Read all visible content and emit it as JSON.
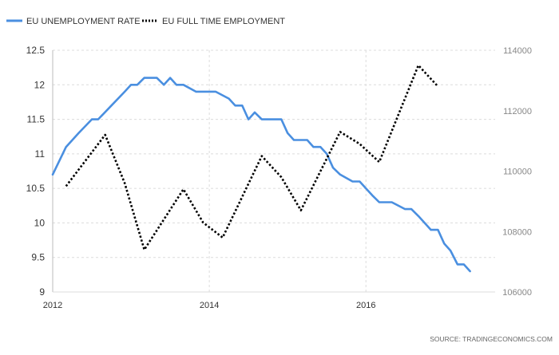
{
  "chart_data": {
    "type": "line",
    "legend_position": "top-left",
    "grid": true,
    "source": "SOURCE: TRADINGECONOMICS.COM",
    "x_ticks": [
      "2012",
      "2014",
      "2016"
    ],
    "xlim": [
      2012,
      2017.65
    ],
    "y_left": {
      "ylim": [
        9,
        12.5
      ],
      "ticks": [
        "12.5",
        "12",
        "11.5",
        "11",
        "10.5",
        "10",
        "9.5",
        "9"
      ],
      "tick_values": [
        12.5,
        12,
        11.5,
        11,
        10.5,
        10,
        9.5,
        9
      ]
    },
    "y_right": {
      "ylim": [
        106000,
        114000
      ],
      "ticks": [
        "114000",
        "112000",
        "110000",
        "108000",
        "106000"
      ],
      "tick_values": [
        114000,
        112000,
        110000,
        108000,
        106000
      ]
    },
    "series": [
      {
        "name": "EU UNEMPLOYMENT RATE",
        "axis": "left",
        "color": "#4a8fe0",
        "style": "solid",
        "x": [
          2012.0,
          2012.17,
          2012.33,
          2012.5,
          2012.58,
          2012.75,
          2012.92,
          2013.0,
          2013.08,
          2013.17,
          2013.33,
          2013.42,
          2013.5,
          2013.58,
          2013.67,
          2013.83,
          2014.0,
          2014.08,
          2014.25,
          2014.33,
          2014.42,
          2014.5,
          2014.58,
          2014.67,
          2014.83,
          2014.92,
          2015.0,
          2015.08,
          2015.25,
          2015.33,
          2015.42,
          2015.5,
          2015.58,
          2015.67,
          2015.83,
          2015.92,
          2016.0,
          2016.08,
          2016.17,
          2016.33,
          2016.5,
          2016.58,
          2016.67,
          2016.83,
          2016.92,
          2017.0,
          2017.08,
          2017.17,
          2017.25,
          2017.33
        ],
        "values": [
          10.7,
          11.1,
          11.3,
          11.5,
          11.5,
          11.7,
          11.9,
          12.0,
          12.0,
          12.1,
          12.1,
          12.0,
          12.1,
          12.0,
          12.0,
          11.9,
          11.9,
          11.9,
          11.8,
          11.7,
          11.7,
          11.5,
          11.6,
          11.5,
          11.5,
          11.5,
          11.3,
          11.2,
          11.2,
          11.1,
          11.1,
          11.0,
          10.8,
          10.7,
          10.6,
          10.6,
          10.5,
          10.4,
          10.3,
          10.3,
          10.2,
          10.2,
          10.1,
          9.9,
          9.9,
          9.7,
          9.6,
          9.4,
          9.4,
          9.3
        ]
      },
      {
        "name": "EU FULL TIME EMPLOYMENT",
        "axis": "right",
        "color": "#000000",
        "style": "dotted",
        "x": [
          2012.17,
          2012.67,
          2012.92,
          2013.17,
          2013.67,
          2013.92,
          2014.17,
          2014.67,
          2014.92,
          2015.17,
          2015.67,
          2015.92,
          2016.17,
          2016.67,
          2016.92
        ],
        "values": [
          109500,
          111200,
          109600,
          107400,
          109400,
          108300,
          107800,
          110500,
          109800,
          108700,
          111300,
          110900,
          110300,
          113500,
          112800
        ]
      }
    ]
  }
}
